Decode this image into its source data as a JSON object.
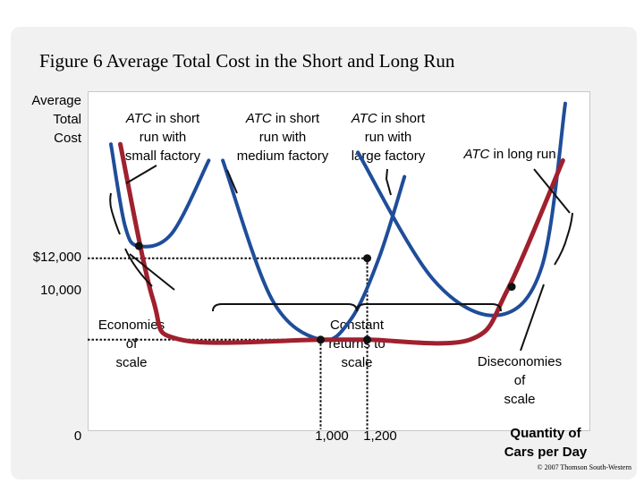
{
  "chart_data": {
    "type": "line",
    "title": "Figure 6 Average Total Cost in the Short and Long Run",
    "ylabel": [
      "Average",
      "Total",
      "Cost"
    ],
    "xlabel": [
      "Quantity of",
      "Cars per Day"
    ],
    "x_ticks": [
      {
        "value": 0,
        "label": "0"
      },
      {
        "value": 1000,
        "label": "1,000"
      },
      {
        "value": 1200,
        "label": "1,200"
      }
    ],
    "y_ticks": [
      {
        "value": 12000,
        "label": "$12,000"
      },
      {
        "value": 10000,
        "label": "10,000"
      }
    ],
    "series": [
      {
        "name": "ATC in long run",
        "color": "#a0202e",
        "points": [
          [
            140,
            14800
          ],
          [
            280,
            11000
          ],
          [
            400,
            10000
          ],
          [
            1000,
            10000
          ],
          [
            1200,
            10000
          ],
          [
            1640,
            10000
          ],
          [
            1800,
            11200
          ],
          [
            2040,
            14400
          ]
        ]
      },
      {
        "name": "ATC in short run with small factory",
        "color": "#1f4d99",
        "points": [
          [
            100,
            14800
          ],
          [
            160,
            12800
          ],
          [
            220,
            12300
          ],
          [
            360,
            12600
          ],
          [
            520,
            14400
          ]
        ]
      },
      {
        "name": "ATC in short run with medium factory",
        "color": "#1f4d99",
        "points": [
          [
            580,
            14400
          ],
          [
            790,
            11000
          ],
          [
            1000,
            10000
          ],
          [
            1130,
            10500
          ],
          [
            1250,
            12000
          ],
          [
            1360,
            14000
          ]
        ]
      },
      {
        "name": "ATC in short run with large factory",
        "color": "#1f4d99",
        "points": [
          [
            1160,
            14600
          ],
          [
            1480,
            11500
          ],
          [
            1760,
            10600
          ],
          [
            1950,
            11800
          ],
          [
            2050,
            15800
          ]
        ]
      }
    ],
    "points": [
      {
        "x": 220,
        "y": 12300
      },
      {
        "x": 1000,
        "y": 10000
      },
      {
        "x": 1200,
        "y": 12000
      },
      {
        "x": 1200,
        "y": 10000
      },
      {
        "x": 1820,
        "y": 11300
      }
    ],
    "annotations": {
      "small": {
        "name": "ATC",
        "rest": " in short",
        "lines": [
          "run with",
          "small factory"
        ]
      },
      "medium": {
        "name": "ATC",
        "rest": " in short",
        "lines": [
          "run with",
          "medium factory"
        ]
      },
      "large": {
        "name": "ATC",
        "rest": " in short",
        "lines": [
          "run with",
          "large factory"
        ]
      },
      "long": {
        "name": "ATC",
        "rest": " in long run"
      },
      "economies": [
        "Economies",
        "of",
        "scale"
      ],
      "constant": [
        "Constant",
        "returns to",
        "scale"
      ],
      "diseconomies": [
        "Diseconomies",
        "of",
        "scale"
      ]
    },
    "xlim": [
      0,
      2150
    ],
    "ylim": [
      7800,
      16100
    ],
    "grid": false,
    "legend": "none"
  },
  "copyright": "© 2007 Thomson South-Western"
}
